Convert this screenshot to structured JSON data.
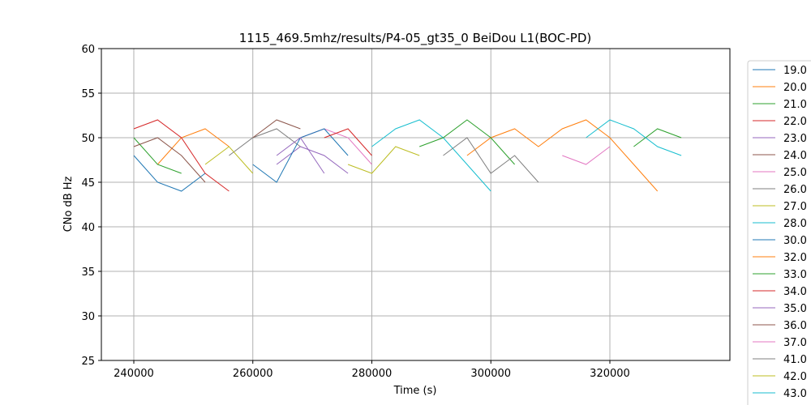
{
  "chart_data": {
    "type": "line",
    "title": "1115_469.5mhz/results/P4-05_gt35_0 BeiDou L1(BOC-PD)",
    "x_label": "Time (s)",
    "y_label": "CNo dB Hz",
    "xlim": [
      234550,
      340170
    ],
    "ylim": [
      25,
      60
    ],
    "xticks": [
      240000,
      260000,
      280000,
      300000,
      320000
    ],
    "yticks": [
      25,
      30,
      35,
      40,
      45,
      50,
      55,
      60
    ],
    "grid": true,
    "legend": "right",
    "x": [
      240000,
      244000,
      248000,
      252000,
      256000,
      260000,
      264000,
      268000,
      272000,
      276000,
      280000,
      284000,
      288000,
      292000,
      296000,
      300000,
      304000,
      308000,
      312000,
      316000,
      320000,
      324000,
      328000,
      332000
    ],
    "series": [
      {
        "name": "19.0",
        "color": "#1f77b4",
        "values": [
          48,
          45,
          44,
          46,
          null,
          null,
          null,
          null,
          null,
          null,
          null,
          null,
          null,
          null,
          null,
          null,
          null,
          null,
          null,
          null,
          null,
          null,
          null,
          null
        ]
      },
      {
        "name": "20.0",
        "color": "#ff7f0e",
        "values": [
          null,
          47,
          50,
          51,
          49,
          null,
          null,
          null,
          null,
          null,
          null,
          null,
          null,
          null,
          null,
          null,
          null,
          null,
          null,
          null,
          null,
          null,
          null,
          null
        ]
      },
      {
        "name": "21.0",
        "color": "#2ca02c",
        "values": [
          50,
          47,
          46,
          null,
          null,
          null,
          null,
          null,
          null,
          null,
          null,
          null,
          null,
          null,
          null,
          null,
          null,
          null,
          null,
          null,
          null,
          49,
          51,
          50
        ]
      },
      {
        "name": "22.0",
        "color": "#d62728",
        "values": [
          51,
          52,
          50,
          46,
          44,
          null,
          null,
          null,
          null,
          null,
          null,
          null,
          null,
          null,
          null,
          null,
          null,
          null,
          null,
          null,
          null,
          null,
          null,
          null
        ]
      },
      {
        "name": "23.0",
        "color": "#9467bd",
        "values": [
          null,
          null,
          null,
          null,
          null,
          null,
          47,
          49,
          48,
          46,
          null,
          null,
          null,
          null,
          null,
          null,
          null,
          null,
          null,
          null,
          null,
          null,
          null,
          null
        ]
      },
      {
        "name": "24.0",
        "color": "#8c564b",
        "values": [
          49,
          50,
          48,
          45,
          null,
          null,
          null,
          null,
          null,
          null,
          null,
          null,
          null,
          null,
          null,
          null,
          null,
          null,
          null,
          null,
          null,
          null,
          null,
          null
        ]
      },
      {
        "name": "25.0",
        "color": "#e377c2",
        "values": [
          null,
          null,
          null,
          null,
          null,
          null,
          null,
          50,
          51,
          50,
          47,
          null,
          null,
          null,
          null,
          null,
          null,
          null,
          null,
          null,
          null,
          null,
          null,
          null
        ]
      },
      {
        "name": "26.0",
        "color": "#7f7f7f",
        "values": [
          null,
          null,
          null,
          null,
          48,
          50,
          51,
          49,
          null,
          null,
          null,
          null,
          null,
          null,
          null,
          null,
          null,
          null,
          null,
          null,
          null,
          null,
          null,
          null
        ]
      },
      {
        "name": "27.0",
        "color": "#bcbd22",
        "values": [
          null,
          null,
          null,
          47,
          49,
          46,
          null,
          null,
          null,
          null,
          null,
          null,
          null,
          null,
          null,
          null,
          null,
          null,
          null,
          null,
          null,
          null,
          null,
          null
        ]
      },
      {
        "name": "28.0",
        "color": "#17becf",
        "values": [
          null,
          null,
          null,
          null,
          null,
          null,
          null,
          null,
          null,
          null,
          49,
          51,
          52,
          50,
          47,
          44,
          null,
          null,
          null,
          null,
          null,
          null,
          null,
          null
        ]
      },
      {
        "name": "30.0",
        "color": "#1f77b4",
        "values": [
          null,
          null,
          null,
          null,
          null,
          47,
          45,
          50,
          51,
          48,
          null,
          null,
          null,
          null,
          null,
          null,
          null,
          null,
          null,
          null,
          null,
          null,
          null,
          null
        ]
      },
      {
        "name": "32.0",
        "color": "#ff7f0e",
        "values": [
          null,
          null,
          null,
          null,
          null,
          null,
          null,
          null,
          null,
          null,
          null,
          null,
          null,
          null,
          48,
          50,
          51,
          49,
          51,
          52,
          50,
          47,
          44,
          null
        ]
      },
      {
        "name": "33.0",
        "color": "#2ca02c",
        "values": [
          null,
          null,
          null,
          null,
          null,
          null,
          null,
          null,
          null,
          null,
          null,
          null,
          49,
          50,
          52,
          50,
          47,
          null,
          null,
          null,
          null,
          null,
          null,
          null
        ]
      },
      {
        "name": "34.0",
        "color": "#d62728",
        "values": [
          null,
          null,
          null,
          null,
          null,
          null,
          null,
          null,
          50,
          51,
          48,
          null,
          null,
          null,
          null,
          null,
          null,
          null,
          null,
          null,
          null,
          null,
          null,
          null
        ]
      },
      {
        "name": "35.0",
        "color": "#9467bd",
        "values": [
          null,
          null,
          null,
          null,
          null,
          null,
          48,
          50,
          46,
          null,
          null,
          null,
          null,
          null,
          null,
          null,
          null,
          null,
          null,
          null,
          null,
          null,
          null,
          null
        ]
      },
      {
        "name": "36.0",
        "color": "#8c564b",
        "values": [
          null,
          null,
          null,
          null,
          null,
          50,
          52,
          51,
          null,
          null,
          null,
          null,
          null,
          null,
          null,
          null,
          null,
          null,
          null,
          null,
          null,
          null,
          null,
          null
        ]
      },
      {
        "name": "37.0",
        "color": "#e377c2",
        "values": [
          null,
          null,
          null,
          null,
          null,
          null,
          null,
          null,
          null,
          null,
          null,
          null,
          null,
          null,
          null,
          null,
          null,
          null,
          48,
          47,
          49,
          null,
          null,
          null
        ]
      },
      {
        "name": "41.0",
        "color": "#7f7f7f",
        "values": [
          null,
          null,
          null,
          null,
          null,
          null,
          null,
          null,
          null,
          null,
          null,
          null,
          null,
          48,
          50,
          46,
          48,
          45,
          null,
          null,
          null,
          null,
          null,
          null
        ]
      },
      {
        "name": "42.0",
        "color": "#bcbd22",
        "values": [
          null,
          null,
          null,
          null,
          null,
          null,
          null,
          null,
          null,
          47,
          46,
          49,
          48,
          null,
          null,
          null,
          null,
          null,
          null,
          null,
          null,
          null,
          null,
          null
        ]
      },
      {
        "name": "43.0",
        "color": "#17becf",
        "values": [
          null,
          null,
          null,
          null,
          null,
          null,
          null,
          null,
          null,
          null,
          null,
          null,
          null,
          null,
          null,
          null,
          null,
          null,
          null,
          50,
          52,
          51,
          49,
          48
        ]
      }
    ]
  }
}
